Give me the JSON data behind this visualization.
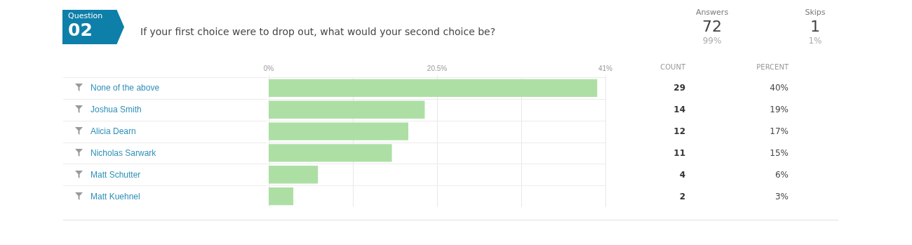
{
  "chart_data": {
    "type": "bar",
    "orientation": "horizontal",
    "title": "If your first choice were to drop out, what would your second choice be?",
    "categories": [
      "None of the above",
      "Joshua Smith",
      "Alicia Dearn",
      "Nicholas Sarwark",
      "Matt Schutter",
      "Matt Kuehnel"
    ],
    "values": [
      40,
      19,
      17,
      15,
      6,
      3
    ],
    "value_labels": [
      "40%",
      "19%",
      "17%",
      "15%",
      "6%",
      "3%"
    ],
    "color": "#addfa5",
    "x2lim": [
      0,
      41
    ],
    "x2ticks": [
      {
        "value": 0,
        "label": "0%"
      },
      {
        "value": 20.5,
        "label": "20.5%"
      },
      {
        "value": 41,
        "label": "41%"
      }
    ],
    "grid": "x",
    "annotations": [
      "Question",
      "02",
      "Answers",
      "72",
      "99%",
      "Skips",
      "1",
      "1%",
      "COUNT",
      "PERCENT",
      "29",
      "14",
      "12",
      "11",
      "4",
      "2"
    ]
  }
}
